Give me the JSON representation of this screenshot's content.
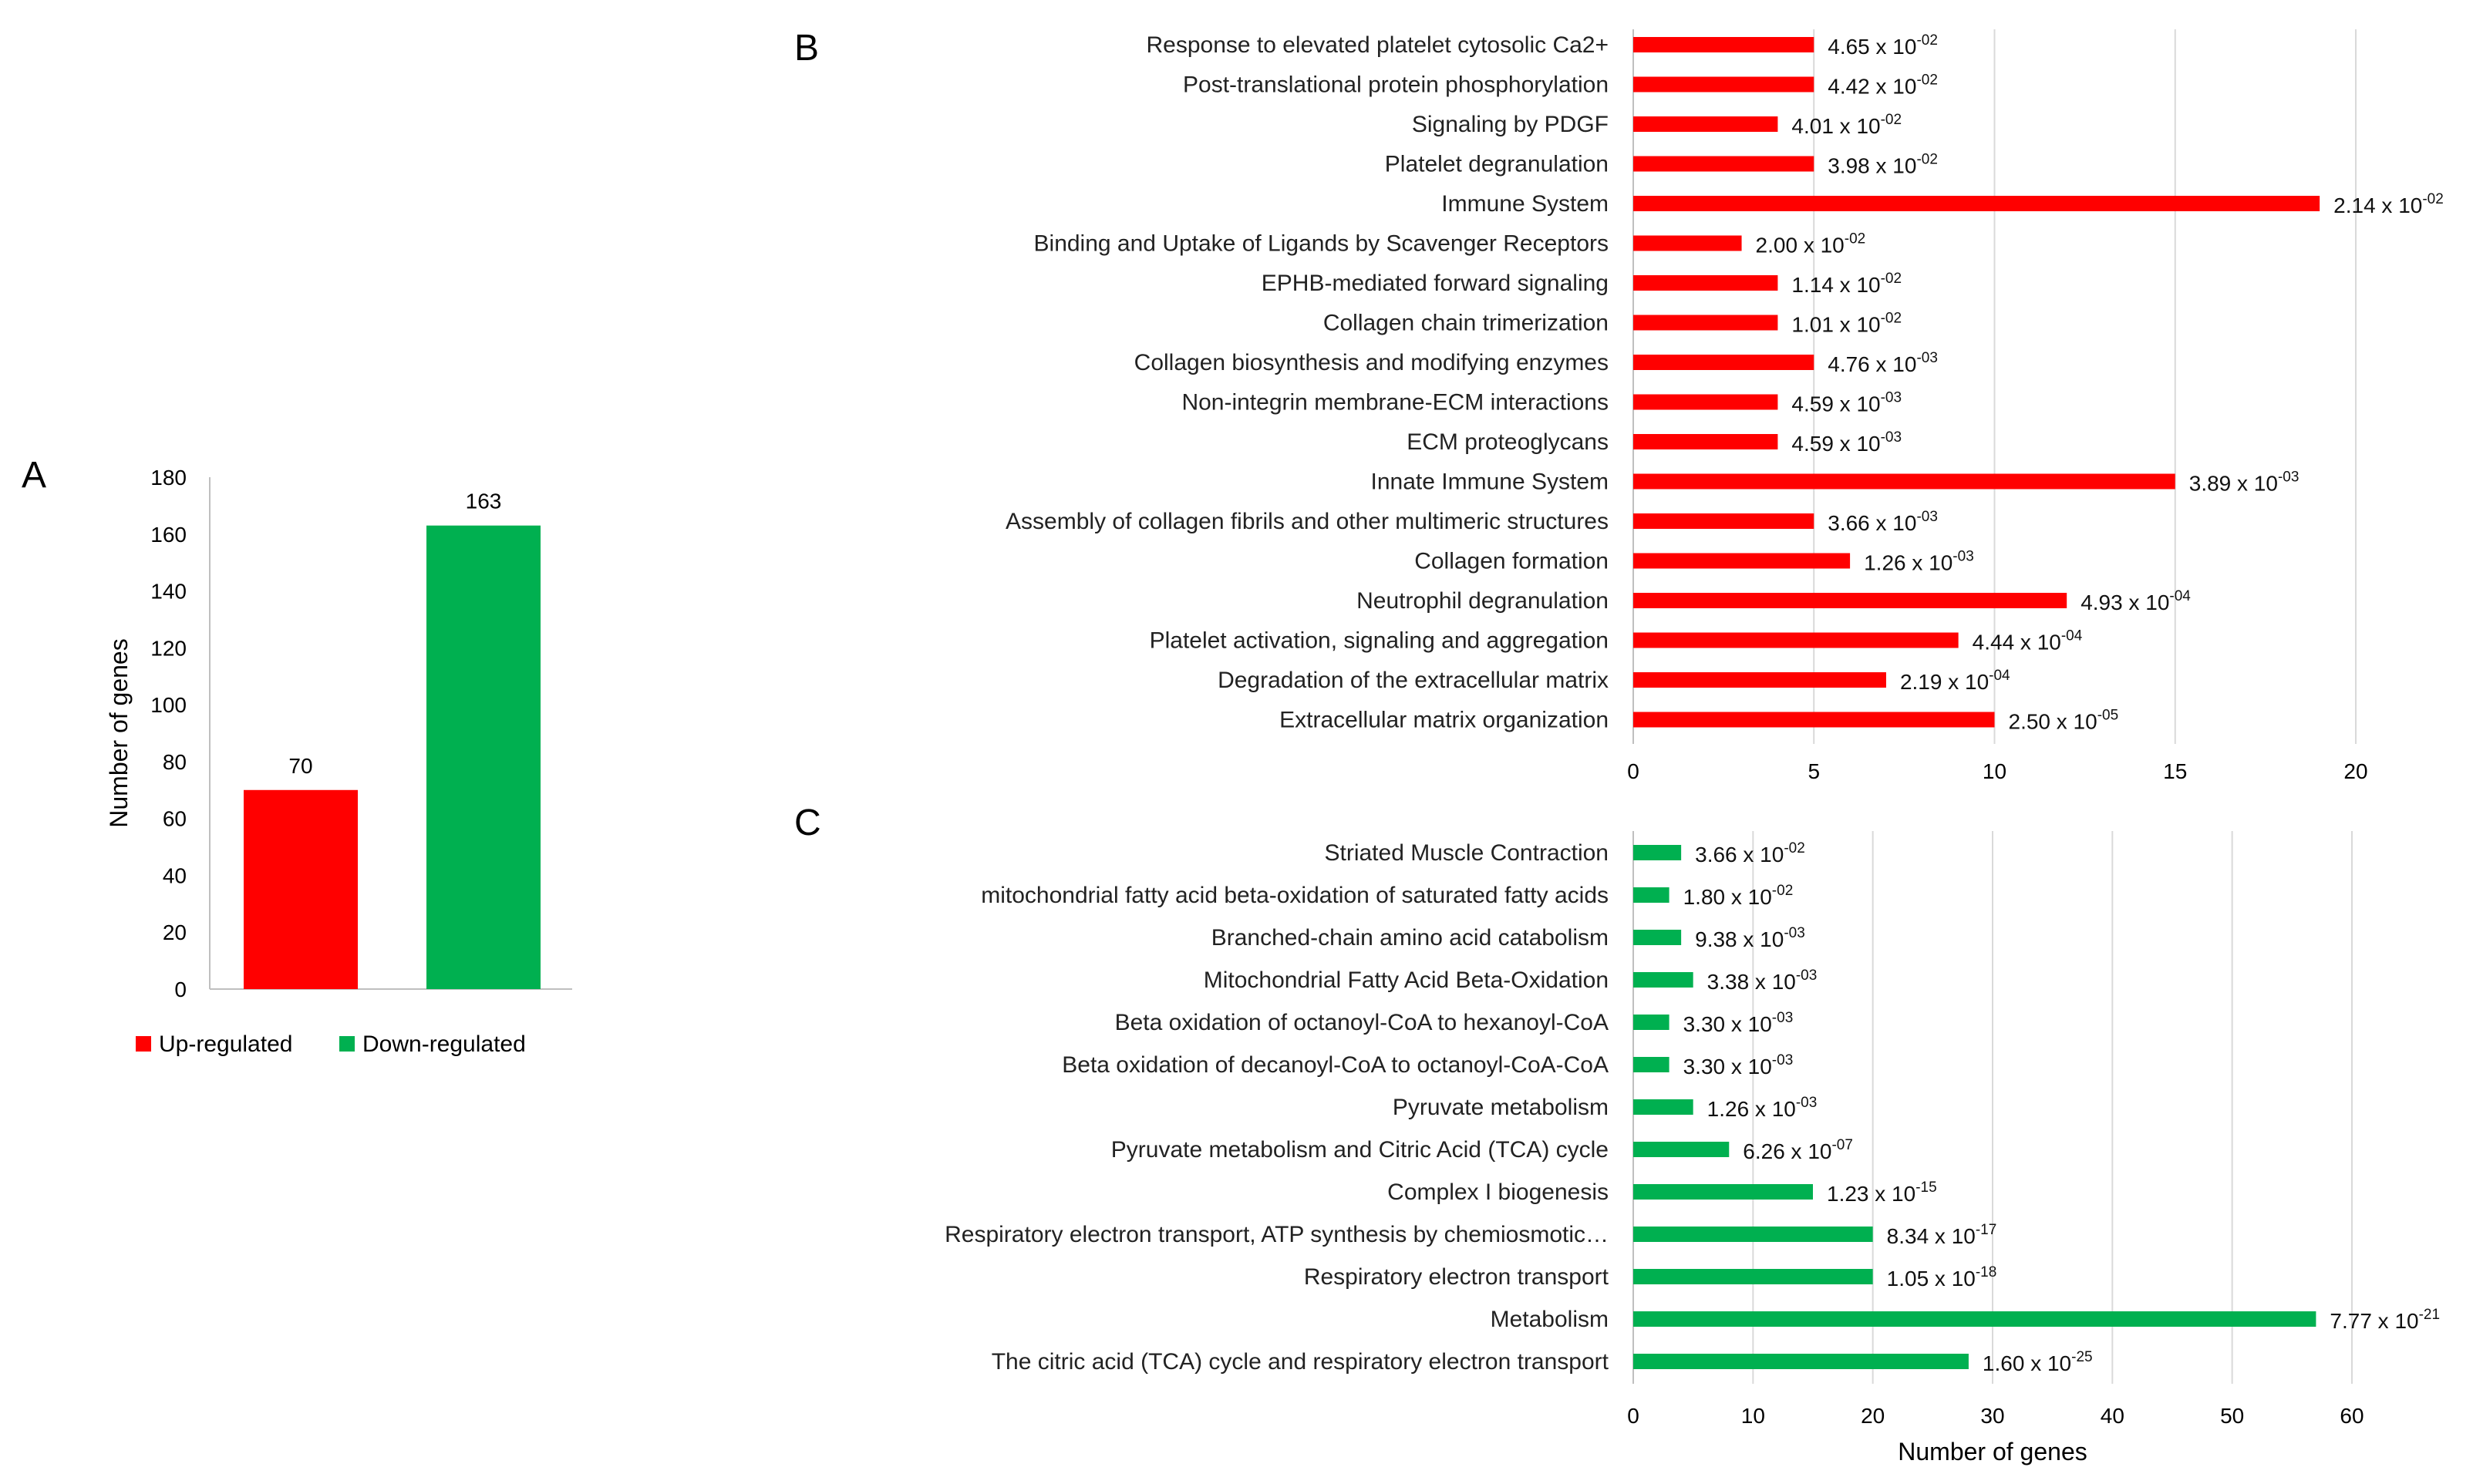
{
  "colors": {
    "up": "#ff0000",
    "down": "#00b050"
  },
  "chart_data": [
    {
      "panel": "A",
      "type": "bar",
      "categories": [
        "Up-regulated",
        "Down-regulated"
      ],
      "values": [
        70,
        163
      ],
      "data_labels": [
        "70",
        "163"
      ],
      "ylabel": "Number of genes",
      "ylim": [
        0,
        180
      ],
      "yticks": [
        0,
        20,
        40,
        60,
        80,
        100,
        120,
        140,
        160,
        180
      ],
      "legend": [
        "Up-regulated",
        "Down-regulated"
      ],
      "legend_position": "bottom",
      "grid": false
    },
    {
      "panel": "B",
      "type": "bar",
      "orientation": "horizontal",
      "xlim": [
        0,
        20
      ],
      "xticks": [
        0,
        5,
        10,
        15,
        20
      ],
      "grid": true,
      "categories": [
        "Response to elevated platelet cytosolic Ca2+",
        "Post-translational protein phosphorylation",
        "Signaling by PDGF",
        "Platelet degranulation",
        "Immune System",
        "Binding and Uptake of Ligands by Scavenger Receptors",
        "EPHB-mediated forward signaling",
        "Collagen chain trimerization",
        "Collagen biosynthesis and modifying enzymes",
        "Non-integrin membrane-ECM interactions",
        "ECM proteoglycans",
        "Innate Immune System",
        "Assembly of collagen fibrils and other multimeric structures",
        "Collagen formation",
        "Neutrophil degranulation",
        "Platelet activation, signaling and aggregation",
        "Degradation of the extracellular matrix",
        "Extracellular matrix organization"
      ],
      "values": [
        5,
        5,
        4,
        5,
        19,
        3,
        4,
        4,
        5,
        4,
        4,
        15,
        5,
        6,
        12,
        9,
        7,
        10
      ],
      "label_base": [
        "4.65 x 10",
        "4.42 x 10",
        "4.01 x 10",
        "3.98 x 10",
        "2.14 x 10",
        "2.00 x 10",
        "1.14 x 10",
        "1.01 x 10",
        "4.76 x 10",
        "4.59 x 10",
        "4.59 x 10",
        "3.89 x 10",
        "3.66 x 10",
        "1.26 x 10",
        "4.93 x 10",
        "4.44 x 10",
        "2.19 x 10",
        "2.50 x 10"
      ],
      "label_exp": [
        "-02",
        "-02",
        "-02",
        "-02",
        "-02",
        "-02",
        "-02",
        "-02",
        "-03",
        "-03",
        "-03",
        "-03",
        "-03",
        "-03",
        "-04",
        "-04",
        "-04",
        "-05"
      ]
    },
    {
      "panel": "C",
      "type": "bar",
      "orientation": "horizontal",
      "xlim": [
        0,
        60
      ],
      "xticks": [
        0,
        10,
        20,
        30,
        40,
        50,
        60
      ],
      "xlabel": "Number of genes",
      "grid": true,
      "categories": [
        "Striated Muscle Contraction",
        "mitochondrial fatty acid beta-oxidation of saturated fatty acids",
        "Branched-chain amino acid catabolism",
        "Mitochondrial Fatty Acid Beta-Oxidation",
        "Beta oxidation of octanoyl-CoA to hexanoyl-CoA",
        "Beta oxidation of decanoyl-CoA to octanoyl-CoA-CoA",
        "Pyruvate metabolism",
        "Pyruvate metabolism and Citric Acid (TCA) cycle",
        "Complex I biogenesis",
        "Respiratory electron transport, ATP synthesis by chemiosmotic…",
        "Respiratory electron transport",
        "Metabolism",
        "The citric acid (TCA) cycle and respiratory electron transport"
      ],
      "values": [
        4,
        3,
        4,
        5,
        3,
        3,
        5,
        8,
        15,
        20,
        20,
        57,
        28
      ],
      "label_base": [
        "3.66 x 10",
        "1.80 x 10",
        "9.38 x 10",
        "3.38 x 10",
        "3.30 x 10",
        "3.30 x 10",
        "1.26 x 10",
        "6.26 x 10",
        "1.23 x 10",
        "8.34 x 10",
        "1.05 x 10",
        "7.77 x 10",
        "1.60 x 10"
      ],
      "label_exp": [
        "-02",
        "-02",
        "-03",
        "-03",
        "-03",
        "-03",
        "-03",
        "-07",
        "-15",
        "-17",
        "-18",
        "-21",
        "-25"
      ]
    }
  ]
}
